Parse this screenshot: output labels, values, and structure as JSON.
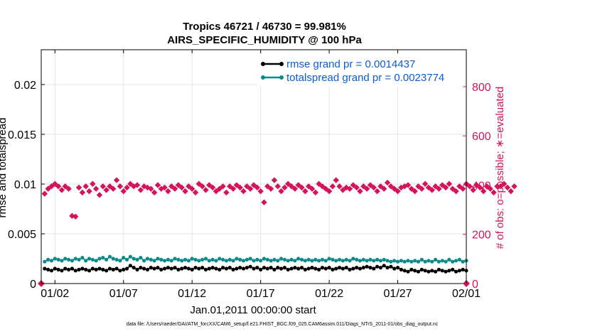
{
  "chart_data": {
    "type": "line",
    "title": "Tropics 46721 / 46730 = 99.981%",
    "subtitle": "AIRS_SPECIFIC_HUMIDITY @ 100 hPa",
    "xlabel": "Jan.01,2011 00:00:00 start",
    "ylabel": "rmse and totalspread",
    "ylabel_right": "# of obs: o=possible; ∗=evaluated",
    "footnote": "data file: /Users/raeder/DAI/ATM_forcXX/CAM6_setup/f.e21.FHIST_BGC.f09_025.CAM6assim.011/Diags_NTrS_2011-01/obs_diag_output.nc",
    "x_range_days": [
      0,
      31
    ],
    "xticks": [
      {
        "day": 1,
        "label": "01/02"
      },
      {
        "day": 6,
        "label": "01/07"
      },
      {
        "day": 11,
        "label": "01/12"
      },
      {
        "day": 16,
        "label": "01/17"
      },
      {
        "day": 21,
        "label": "01/22"
      },
      {
        "day": 26,
        "label": "01/27"
      },
      {
        "day": 31,
        "label": "02/01"
      }
    ],
    "ylim": [
      0,
      0.0235
    ],
    "yticks": [
      {
        "value": 0,
        "label": "0"
      },
      {
        "value": 0.005,
        "label": "0.005"
      },
      {
        "value": 0.01,
        "label": "0.01"
      },
      {
        "value": 0.015,
        "label": "0.015"
      },
      {
        "value": 0.02,
        "label": "0.02"
      }
    ],
    "ylim_right": [
      0,
      950
    ],
    "yticks_right": [
      {
        "value": 0,
        "label": "0"
      },
      {
        "value": 200,
        "label": "200"
      },
      {
        "value": 400,
        "label": "400"
      },
      {
        "value": 600,
        "label": "600"
      },
      {
        "value": 800,
        "label": "800"
      }
    ],
    "legend": {
      "placement": "top-right"
    },
    "series": [
      {
        "name": "rmse grand pr = 0.0014437",
        "color": "#000000",
        "axis": "left",
        "marker": "circle",
        "x_start": 0.25,
        "x_step": 0.25,
        "values": [
          0.0015,
          0.0014,
          0.0013,
          0.0015,
          0.0014,
          0.0013,
          0.0015,
          0.0014,
          0.0015,
          0.0013,
          0.0014,
          0.0015,
          0.0014,
          0.0013,
          0.0015,
          0.0014,
          0.0015,
          0.0014,
          0.0013,
          0.0015,
          0.0014,
          0.0015,
          0.0013,
          0.0014,
          0.0015,
          0.0018,
          0.0016,
          0.0014,
          0.0016,
          0.0015,
          0.0014,
          0.0016,
          0.0015,
          0.0016,
          0.0014,
          0.0015,
          0.0016,
          0.0015,
          0.0016,
          0.0014,
          0.0015,
          0.0016,
          0.0015,
          0.0014,
          0.0016,
          0.0015,
          0.0016,
          0.0014,
          0.0015,
          0.0016,
          0.0015,
          0.0014,
          0.0016,
          0.0015,
          0.0016,
          0.0014,
          0.0015,
          0.0016,
          0.0015,
          0.0016,
          0.0017,
          0.0015,
          0.0016,
          0.0014,
          0.0016,
          0.0015,
          0.0016,
          0.0014,
          0.0016,
          0.0015,
          0.0016,
          0.0014,
          0.0015,
          0.0016,
          0.0015,
          0.0016,
          0.0014,
          0.0015,
          0.0016,
          0.0015,
          0.0014,
          0.0016,
          0.0015,
          0.0016,
          0.0014,
          0.0015,
          0.0016,
          0.0015,
          0.0016,
          0.0014,
          0.0015,
          0.0016,
          0.0015,
          0.0016,
          0.0017,
          0.0016,
          0.0015,
          0.0017,
          0.0016,
          0.0018,
          0.0016,
          0.0017,
          0.0015,
          0.0016,
          0.0014,
          0.0013,
          0.0012,
          0.0014,
          0.0013,
          0.0012,
          0.0014,
          0.0013,
          0.0012,
          0.0013,
          0.0012,
          0.0014,
          0.0013,
          0.0012,
          0.0013,
          0.0014,
          0.0012,
          0.0013,
          0.0014,
          0.0013
        ]
      },
      {
        "name": "totalspread grand pr = 0.0023774",
        "color": "#0b8a8a",
        "axis": "left",
        "marker": "circle",
        "x_start": 0.25,
        "x_step": 0.25,
        "values": [
          0.0022,
          0.0024,
          0.0023,
          0.0025,
          0.0024,
          0.0023,
          0.0025,
          0.0024,
          0.0023,
          0.0025,
          0.0024,
          0.0026,
          0.0023,
          0.0025,
          0.0024,
          0.0023,
          0.0025,
          0.0026,
          0.0024,
          0.0027,
          0.0025,
          0.0024,
          0.0023,
          0.0026,
          0.0024,
          0.0027,
          0.0025,
          0.0024,
          0.0026,
          0.0023,
          0.0025,
          0.0024,
          0.0023,
          0.0025,
          0.0024,
          0.0023,
          0.0024,
          0.0023,
          0.0025,
          0.0024,
          0.0023,
          0.0024,
          0.0023,
          0.0025,
          0.0024,
          0.0023,
          0.0024,
          0.0025,
          0.0023,
          0.0024,
          0.0023,
          0.0025,
          0.0024,
          0.0023,
          0.0024,
          0.0023,
          0.0025,
          0.0024,
          0.0023,
          0.0024,
          0.0025,
          0.0023,
          0.0024,
          0.0023,
          0.0025,
          0.0024,
          0.0023,
          0.0024,
          0.0023,
          0.0025,
          0.0024,
          0.0023,
          0.0024,
          0.0023,
          0.0025,
          0.0024,
          0.0023,
          0.0024,
          0.0023,
          0.0024,
          0.0023,
          0.0024,
          0.0023,
          0.0025,
          0.0024,
          0.0023,
          0.0024,
          0.0023,
          0.0024,
          0.0023,
          0.0025,
          0.0024,
          0.0023,
          0.0024,
          0.0023,
          0.0024,
          0.0023,
          0.0024,
          0.0023,
          0.0024,
          0.0023,
          0.0022,
          0.0023,
          0.0022,
          0.0023,
          0.0022,
          0.0023,
          0.0022,
          0.0023,
          0.0022,
          0.0024,
          0.0022,
          0.0023,
          0.0022,
          0.0024,
          0.0022,
          0.0023,
          0.0022,
          0.0024,
          0.0022,
          0.0023,
          0.0024,
          0.0022,
          0.0023
        ]
      },
      {
        "name": "# of obs evaluated",
        "color": "#d4145a",
        "axis": "right",
        "marker": "star",
        "x_start": 0.25,
        "x_step": 0.25,
        "values": [
          365,
          385,
          395,
          405,
          395,
          380,
          395,
          385,
          275,
          272,
          390,
          370,
          395,
          375,
          405,
          385,
          360,
          395,
          380,
          395,
          385,
          420,
          395,
          375,
          390,
          405,
          395,
          400,
          380,
          395,
          390,
          385,
          370,
          400,
          385,
          390,
          375,
          395,
          385,
          400,
          390,
          375,
          395,
          385,
          370,
          405,
          395,
          380,
          400,
          390,
          375,
          385,
          395,
          370,
          395,
          385,
          400,
          390,
          375,
          395,
          385,
          400,
          390,
          375,
          330,
          395,
          385,
          420,
          395,
          375,
          390,
          405,
          395,
          385,
          400,
          390,
          375,
          395,
          385,
          370,
          405,
          395,
          385,
          375,
          395,
          420,
          395,
          380,
          390,
          385,
          400,
          390,
          375,
          395,
          385,
          400,
          390,
          375,
          395,
          385,
          410,
          395,
          385,
          375,
          390,
          395,
          400,
          385,
          375,
          395,
          385,
          405,
          390,
          380,
          395,
          385,
          400,
          390,
          405,
          385,
          375,
          395,
          385,
          405,
          395,
          380,
          400,
          390,
          375,
          395,
          385,
          370,
          395,
          395,
          405,
          390,
          375,
          395
        ]
      },
      {
        "name": "# of obs possible",
        "color": "#d4145a",
        "axis": "right",
        "marker": "diamond-endpoints",
        "x": [
          0,
          31
        ],
        "values": [
          0,
          0
        ]
      }
    ]
  }
}
